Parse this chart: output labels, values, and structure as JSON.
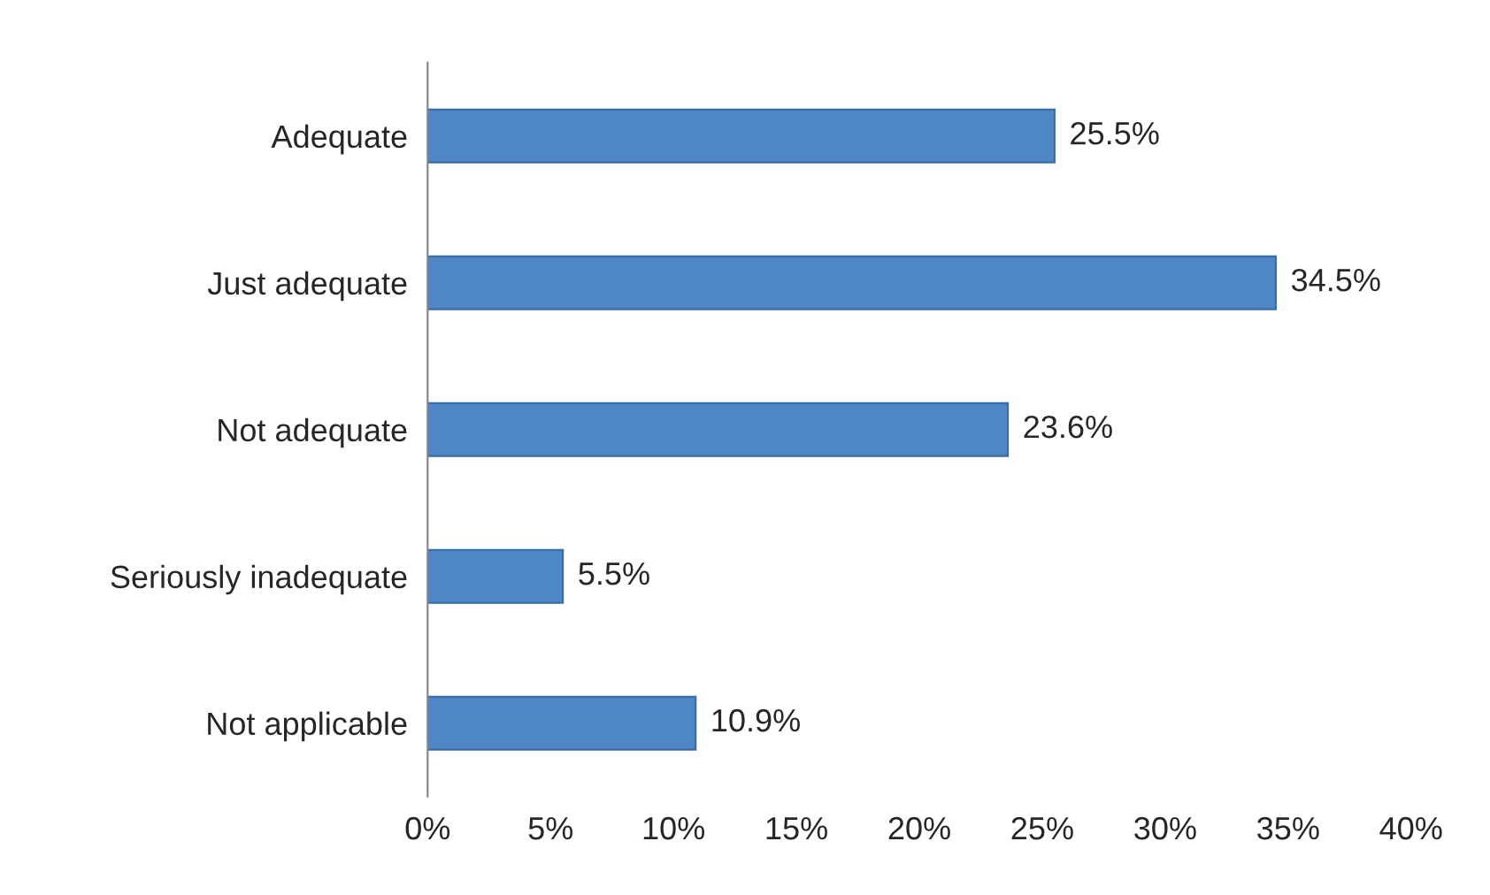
{
  "chart_data": {
    "type": "bar",
    "orientation": "horizontal",
    "categories": [
      "Adequate",
      "Just adequate",
      "Not adequate",
      "Seriously inadequate",
      "Not applicable"
    ],
    "values": [
      25.5,
      34.5,
      23.6,
      5.5,
      10.9
    ],
    "value_labels": [
      "25.5%",
      "34.5%",
      "23.6%",
      "5.5%",
      "10.9%"
    ],
    "color": "#4f86c6",
    "xlim": [
      0,
      40
    ],
    "xticks": [
      {
        "value": 0,
        "label": "0%"
      },
      {
        "value": 5,
        "label": "5%"
      },
      {
        "value": 10,
        "label": "10%"
      },
      {
        "value": 15,
        "label": "15%"
      },
      {
        "value": 20,
        "label": "20%"
      },
      {
        "value": 25,
        "label": "25%"
      },
      {
        "value": 30,
        "label": "30%"
      },
      {
        "value": 35,
        "label": "35%"
      },
      {
        "value": 40,
        "label": "40%"
      }
    ],
    "grid": false,
    "legend": false
  }
}
